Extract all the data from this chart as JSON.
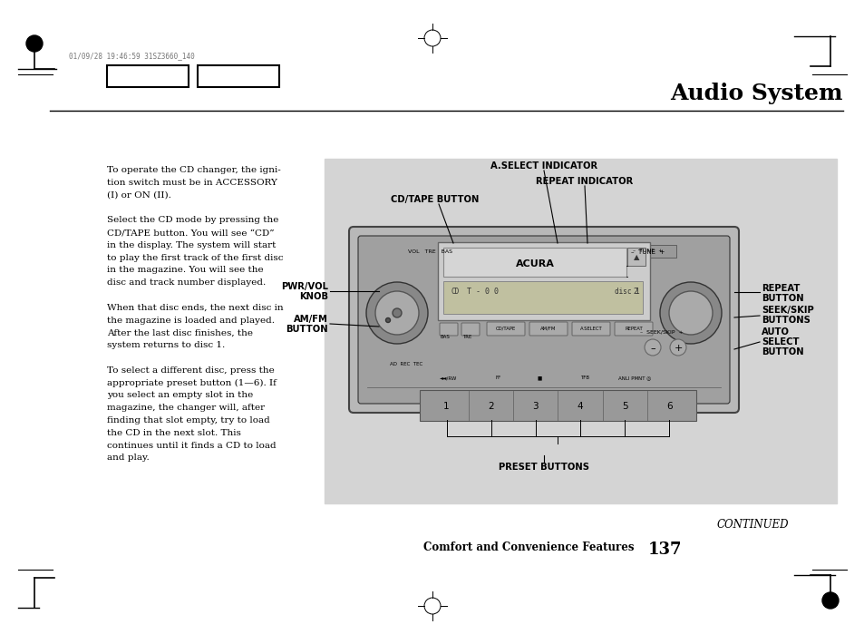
{
  "bg_color": "#ffffff",
  "title": "Audio System",
  "header_stamp": "01/09/28 19:46:59 31SZ3660_140",
  "diagram_bg": "#d4d4d4",
  "body_text": [
    "To operate the CD changer, the igni-",
    "tion switch must be in ACCESSORY",
    "(I) or ON (II).",
    "",
    "Select the CD mode by pressing the",
    "CD/TAPE button. You will see “CD”",
    "in the display. The system will start",
    "to play the first track of the first disc",
    "in the magazine. You will see the",
    "disc and track number displayed.",
    "",
    "When that disc ends, the next disc in",
    "the magazine is loaded and played.",
    "After the last disc finishes, the",
    "system returns to disc 1.",
    "",
    "To select a different disc, press the",
    "appropriate preset button (1—6). If",
    "you select an empty slot in the",
    "magazine, the changer will, after",
    "finding that slot empty, try to load",
    "the CD in the next slot. This",
    "continues until it finds a CD to load",
    "and play."
  ],
  "footer_left": "Comfort and Convenience Features",
  "footer_page": "137",
  "continued_text": "CONTINUED",
  "label_a_select": "A.SELECT INDICATOR",
  "label_repeat_ind": "REPEAT INDICATOR",
  "label_cd_tape": "CD/TAPE BUTTON",
  "label_pwr_vol_1": "PWR/VOL",
  "label_pwr_vol_2": "KNOB",
  "label_am_fm_1": "AM/FM",
  "label_am_fm_2": "BUTTON",
  "label_repeat_btn_1": "REPEAT",
  "label_repeat_btn_2": "BUTTON",
  "label_seek_skip_1": "SEEK/SKIP",
  "label_seek_skip_2": "BUTTONS",
  "label_auto_1": "AUTO",
  "label_auto_2": "SELECT",
  "label_auto_3": "BUTTON",
  "label_preset": "PRESET BUTTONS"
}
